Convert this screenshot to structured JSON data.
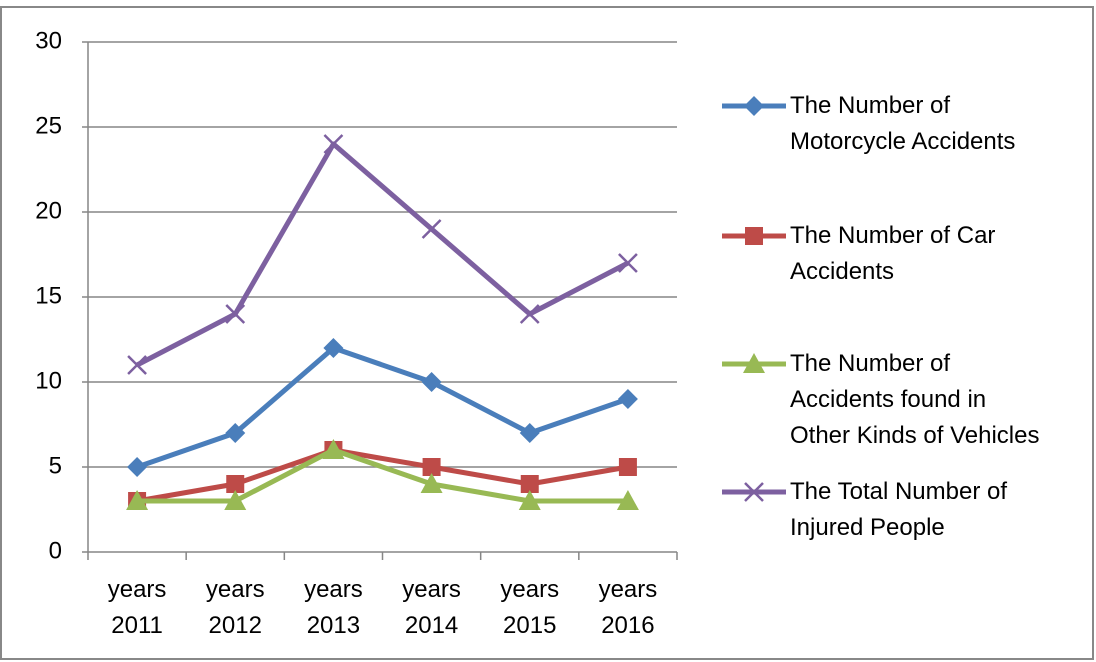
{
  "chart_data": {
    "type": "line",
    "categories": [
      "years\n2011",
      "years\n2012",
      "years\n2013",
      "years\n2014",
      "years\n2015",
      "years\n2016"
    ],
    "series": [
      {
        "name": "The Number of\nMotorcycle Accidents",
        "color": "#4a7ebb",
        "marker": "diamond",
        "values": [
          5,
          7,
          12,
          10,
          7,
          9
        ]
      },
      {
        "name": "The Number of Car\nAccidents",
        "color": "#be4b48",
        "marker": "square",
        "values": [
          3,
          4,
          6,
          5,
          4,
          5
        ]
      },
      {
        "name": "The Number of\nAccidents found in\nOther Kinds of Vehicles",
        "color": "#98b954",
        "marker": "triangle",
        "values": [
          3,
          3,
          6,
          4,
          3,
          3
        ]
      },
      {
        "name": "The Total Number of\nInjured People",
        "color": "#7d60a0",
        "marker": "x",
        "values": [
          11,
          14,
          24,
          19,
          14,
          17
        ]
      }
    ],
    "ylim": [
      0,
      30
    ],
    "yticks": [
      0,
      5,
      10,
      15,
      20,
      25,
      30
    ],
    "grid": true,
    "legend": "right"
  }
}
